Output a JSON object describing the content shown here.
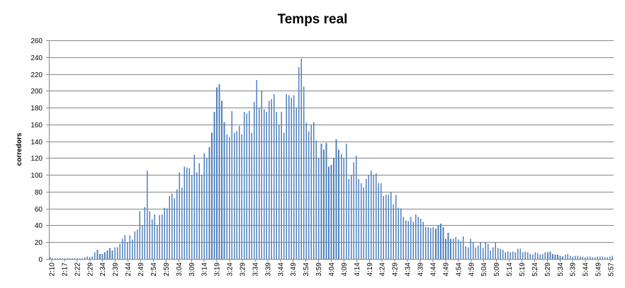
{
  "chart_data": {
    "type": "bar",
    "title": "Temps real",
    "xlabel": "",
    "ylabel": "corredors",
    "ylim": [
      0,
      260
    ],
    "y_ticks": [
      0,
      20,
      40,
      60,
      80,
      100,
      120,
      140,
      160,
      180,
      200,
      220,
      240,
      260
    ],
    "grid": true,
    "legend": "none",
    "bar_color": "#4F81BD",
    "x_tick_labels": [
      "2:10",
      "2:17",
      "2:22",
      "2:29",
      "2:34",
      "2:39",
      "2:44",
      "2:49",
      "2:54",
      "2:59",
      "3:04",
      "3:09",
      "3:14",
      "3:19",
      "3:24",
      "3:29",
      "3:34",
      "3:39",
      "3:44",
      "3:49",
      "3:54",
      "3:59",
      "4:04",
      "4:09",
      "4:14",
      "4:19",
      "4:24",
      "4:29",
      "4:34",
      "4:39",
      "4:44",
      "4:49",
      "4:54",
      "4:59",
      "5:04",
      "5:09",
      "5:14",
      "5:19",
      "5:24",
      "5:29",
      "5:34",
      "5:39",
      "5:44",
      "5:49",
      "5:57"
    ],
    "values": [
      2,
      1,
      1,
      1,
      1,
      1,
      1,
      1,
      1,
      1,
      1,
      1,
      1,
      1,
      2,
      3,
      2,
      3,
      8,
      11,
      6,
      6,
      8,
      10,
      13,
      10,
      14,
      14,
      18,
      24,
      28,
      20,
      28,
      23,
      33,
      35,
      57,
      40,
      62,
      105,
      57,
      47,
      53,
      40,
      52,
      53,
      61,
      60,
      75,
      78,
      72,
      83,
      103,
      85,
      110,
      109,
      108,
      100,
      124,
      103,
      114,
      100,
      126,
      120,
      133,
      150,
      175,
      204,
      208,
      188,
      163,
      148,
      145,
      176,
      150,
      152,
      158,
      148,
      175,
      173,
      176,
      150,
      187,
      213,
      180,
      200,
      178,
      175,
      188,
      190,
      196,
      175,
      160,
      175,
      150,
      196,
      195,
      192,
      195,
      180,
      228,
      238,
      205,
      162,
      152,
      160,
      163,
      141,
      120,
      137,
      130,
      138,
      110,
      112,
      120,
      142,
      130,
      125,
      120,
      137,
      95,
      100,
      115,
      123,
      95,
      90,
      85,
      95,
      100,
      105,
      100,
      102,
      90,
      90,
      75,
      76,
      76,
      80,
      65,
      76,
      61,
      60,
      50,
      46,
      45,
      50,
      44,
      53,
      50,
      48,
      44,
      38,
      38,
      37,
      38,
      36,
      40,
      42,
      38,
      24,
      31,
      24,
      24,
      26,
      23,
      21,
      27,
      15,
      14,
      24,
      20,
      14,
      16,
      20,
      13,
      20,
      18,
      10,
      14,
      20,
      13,
      12,
      11,
      8,
      9,
      8,
      9,
      8,
      12,
      12,
      8,
      9,
      8,
      6,
      5,
      8,
      7,
      5,
      6,
      8,
      8,
      9,
      6,
      5,
      5,
      4,
      3,
      5,
      6,
      4,
      3,
      4,
      4,
      3,
      3,
      2,
      3,
      3,
      2,
      2,
      3,
      3,
      3,
      2,
      2,
      3,
      4
    ]
  }
}
